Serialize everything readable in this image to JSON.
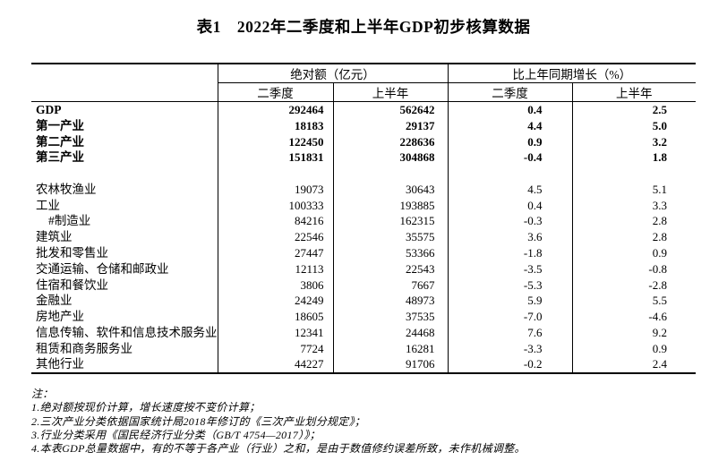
{
  "title": "表1　2022年二季度和上半年GDP初步核算数据",
  "colors": {
    "text": "#000000",
    "background": "#ffffff",
    "border": "#000000"
  },
  "table": {
    "col_groups": [
      {
        "label": "绝对额（亿元）"
      },
      {
        "label": "比上年同期增长（%）"
      }
    ],
    "sub_headers": [
      "二季度",
      "上半年",
      "二季度",
      "上半年"
    ],
    "rows": [
      {
        "label": "GDP",
        "bold": true,
        "indent": false,
        "spacer": false,
        "values": [
          "292464",
          "562642",
          "0.4",
          "2.5"
        ]
      },
      {
        "label": "第一产业",
        "bold": true,
        "indent": false,
        "spacer": false,
        "values": [
          "18183",
          "29137",
          "4.4",
          "5.0"
        ]
      },
      {
        "label": "第二产业",
        "bold": true,
        "indent": false,
        "spacer": false,
        "values": [
          "122450",
          "228636",
          "0.9",
          "3.2"
        ]
      },
      {
        "label": "第三产业",
        "bold": true,
        "indent": false,
        "spacer": false,
        "values": [
          "151831",
          "304868",
          "-0.4",
          "1.8"
        ]
      },
      {
        "label": "",
        "bold": false,
        "indent": false,
        "spacer": true,
        "values": [
          "",
          "",
          "",
          ""
        ]
      },
      {
        "label": "农林牧渔业",
        "bold": false,
        "indent": false,
        "spacer": false,
        "values": [
          "19073",
          "30643",
          "4.5",
          "5.1"
        ]
      },
      {
        "label": "工业",
        "bold": false,
        "indent": false,
        "spacer": false,
        "values": [
          "100333",
          "193885",
          "0.4",
          "3.3"
        ]
      },
      {
        "label": "#制造业",
        "bold": false,
        "indent": true,
        "spacer": false,
        "values": [
          "84216",
          "162315",
          "-0.3",
          "2.8"
        ]
      },
      {
        "label": "建筑业",
        "bold": false,
        "indent": false,
        "spacer": false,
        "values": [
          "22546",
          "35575",
          "3.6",
          "2.8"
        ]
      },
      {
        "label": "批发和零售业",
        "bold": false,
        "indent": false,
        "spacer": false,
        "values": [
          "27447",
          "53366",
          "-1.8",
          "0.9"
        ]
      },
      {
        "label": "交通运输、仓储和邮政业",
        "bold": false,
        "indent": false,
        "spacer": false,
        "values": [
          "12113",
          "22543",
          "-3.5",
          "-0.8"
        ]
      },
      {
        "label": "住宿和餐饮业",
        "bold": false,
        "indent": false,
        "spacer": false,
        "values": [
          "3806",
          "7667",
          "-5.3",
          "-2.8"
        ]
      },
      {
        "label": "金融业",
        "bold": false,
        "indent": false,
        "spacer": false,
        "values": [
          "24249",
          "48973",
          "5.9",
          "5.5"
        ]
      },
      {
        "label": "房地产业",
        "bold": false,
        "indent": false,
        "spacer": false,
        "values": [
          "18605",
          "37535",
          "-7.0",
          "-4.6"
        ]
      },
      {
        "label": "信息传输、软件和信息技术服务业",
        "bold": false,
        "indent": false,
        "spacer": false,
        "values": [
          "12341",
          "24468",
          "7.6",
          "9.2"
        ]
      },
      {
        "label": "租赁和商务服务业",
        "bold": false,
        "indent": false,
        "spacer": false,
        "values": [
          "7724",
          "16281",
          "-3.3",
          "0.9"
        ]
      },
      {
        "label": "其他行业",
        "bold": false,
        "indent": false,
        "spacer": false,
        "values": [
          "44227",
          "91706",
          "-0.2",
          "2.4"
        ]
      }
    ],
    "notes": [
      "注：",
      "1.绝对额按现价计算，增长速度按不变价计算；",
      "2.三次产业分类依据国家统计局2018年修订的《三次产业划分规定》；",
      "3.行业分类采用《国民经济行业分类（GB/T 4754—2017）》；",
      "4.本表GDP总量数据中，有的不等于各产业（行业）之和，是由于数值修约误差所致，未作机械调整。"
    ]
  }
}
